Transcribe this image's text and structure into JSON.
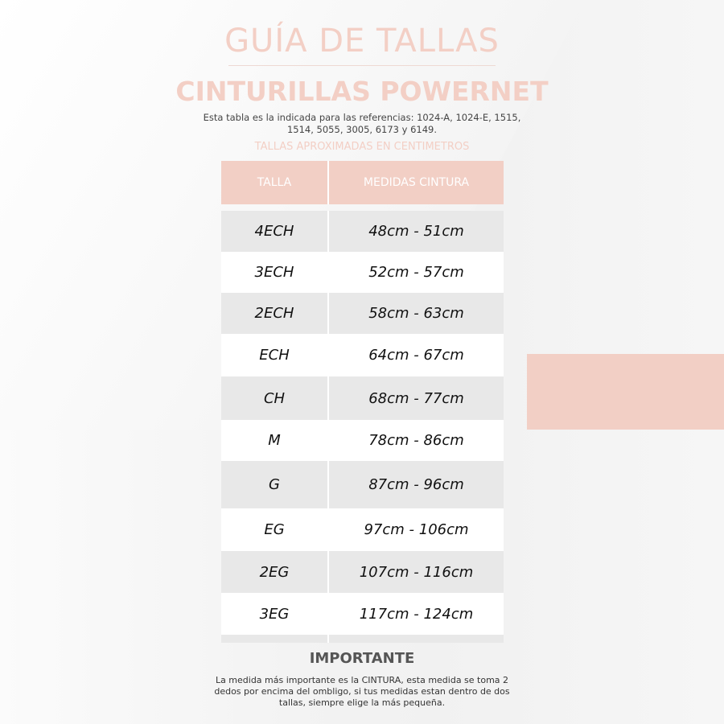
{
  "title": "GUÍA DE TALLAS",
  "subtitle": "CINTURILLAS POWERNET",
  "description": "Esta tabla es la indicada para las referencias: 1024-A, 1024-E, 1515, 1514, 5055, 3005, 6173 y 6149.",
  "approx_label": "TALLAS APROXIMADAS EN CENTIMETROS",
  "table": {
    "headers": [
      "TALLA",
      "MEDIDAS CINTURA"
    ],
    "rows": [
      [
        "4ECH",
        "48cm - 51cm"
      ],
      [
        "3ECH",
        "52cm - 57cm"
      ],
      [
        "2ECH",
        "58cm - 63cm"
      ],
      [
        "ECH",
        "64cm - 67cm"
      ],
      [
        "CH",
        "68cm - 77cm"
      ],
      [
        "M",
        "78cm - 86cm"
      ],
      [
        "G",
        "87cm - 96cm"
      ],
      [
        "EG",
        "97cm - 106cm"
      ],
      [
        "2EG",
        "107cm - 116cm"
      ],
      [
        "3EG",
        "117cm - 124cm"
      ]
    ]
  },
  "important": {
    "heading": "IMPORTANTE",
    "text": "La medida más importante es la CINTURA, esta medida se toma 2 dedos por encima del ombligo, si tus medidas estan dentro de dos tallas, siempre elige la más pequeña."
  },
  "colors": {
    "accent": "#f2cfc5",
    "row_alt": "#e8e8e8"
  }
}
